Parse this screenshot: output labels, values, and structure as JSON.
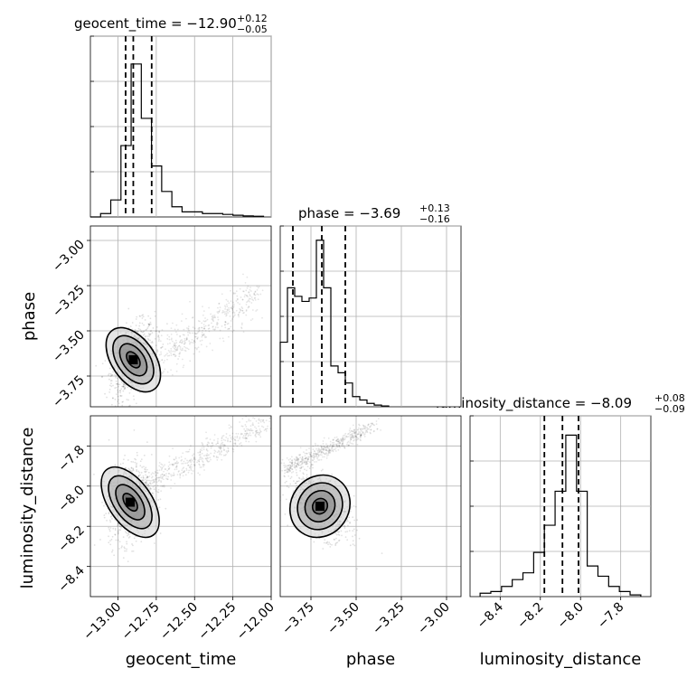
{
  "chart_data": {
    "type": "corner",
    "parameters": [
      {
        "name": "geocent_time",
        "xlabel": "geocent_time",
        "title_main": "geocent_time = −12.90",
        "title_plus": "+0.12",
        "title_minus": "−0.05",
        "range": [
          -13.18,
          -12.0
        ],
        "ticks": [
          -13.0,
          -12.75,
          -12.5,
          -12.25,
          -12.0
        ],
        "tick_labels": [
          "−13.00",
          "−12.75",
          "−12.50",
          "−12.25",
          "−12.00"
        ],
        "quantiles": [
          -12.95,
          -12.9,
          -12.78
        ],
        "hist_values": [
          0,
          0.02,
          0.1,
          0.42,
          0.9,
          0.58,
          0.3,
          0.15,
          0.06,
          0.03,
          0.03,
          0.02,
          0.02,
          0.015,
          0.01,
          0.006,
          0.004
        ]
      },
      {
        "name": "phase",
        "xlabel": "phase",
        "ylabel": "phase",
        "title_main": "phase = −3.69",
        "title_plus": "+0.13",
        "title_minus": "−0.16",
        "range": [
          -3.92,
          -2.92
        ],
        "ticks": [
          -3.75,
          -3.5,
          -3.25,
          -3.0
        ],
        "tick_labels": [
          "−3.75",
          "−3.50",
          "−3.25",
          "−3.00"
        ],
        "y_ticks": [
          -3.0,
          -3.25,
          -3.5,
          -3.75
        ],
        "y_tick_labels": [
          "−3.00",
          "−3.25",
          "−3.50",
          "−3.75"
        ],
        "quantiles": [
          -3.85,
          -3.69,
          -3.56
        ],
        "hist_values": [
          0.38,
          0.7,
          0.65,
          0.62,
          0.64,
          0.98,
          0.7,
          0.24,
          0.2,
          0.14,
          0.06,
          0.04,
          0.02,
          0.01,
          0.005
        ]
      },
      {
        "name": "luminosity_distance",
        "xlabel": "luminosity_distance",
        "ylabel": "luminosity_distance",
        "title_main": "luminosity_distance = −8.09",
        "title_plus": "+0.08",
        "title_minus": "−0.09",
        "range": [
          -8.55,
          -7.65
        ],
        "ticks": [
          -8.4,
          -8.2,
          -8.0,
          -7.8
        ],
        "tick_labels": [
          "−8.4",
          "−8.2",
          "−8.0",
          "−7.8"
        ],
        "y_ticks": [
          -7.8,
          -8.0,
          -8.2,
          -8.4
        ],
        "y_tick_labels": [
          "−7.8",
          "−8.0",
          "−8.2",
          "−8.4"
        ],
        "quantiles": [
          -8.18,
          -8.09,
          -8.01
        ],
        "hist_values": [
          0.02,
          0.03,
          0.06,
          0.1,
          0.14,
          0.26,
          0.42,
          0.62,
          0.95,
          0.62,
          0.18,
          0.12,
          0.06,
          0.03,
          0.01
        ]
      }
    ],
    "contour_levels": [
      "0.5σ",
      "1σ",
      "1.5σ",
      "2σ"
    ],
    "scatter_points": true,
    "grid": true
  }
}
